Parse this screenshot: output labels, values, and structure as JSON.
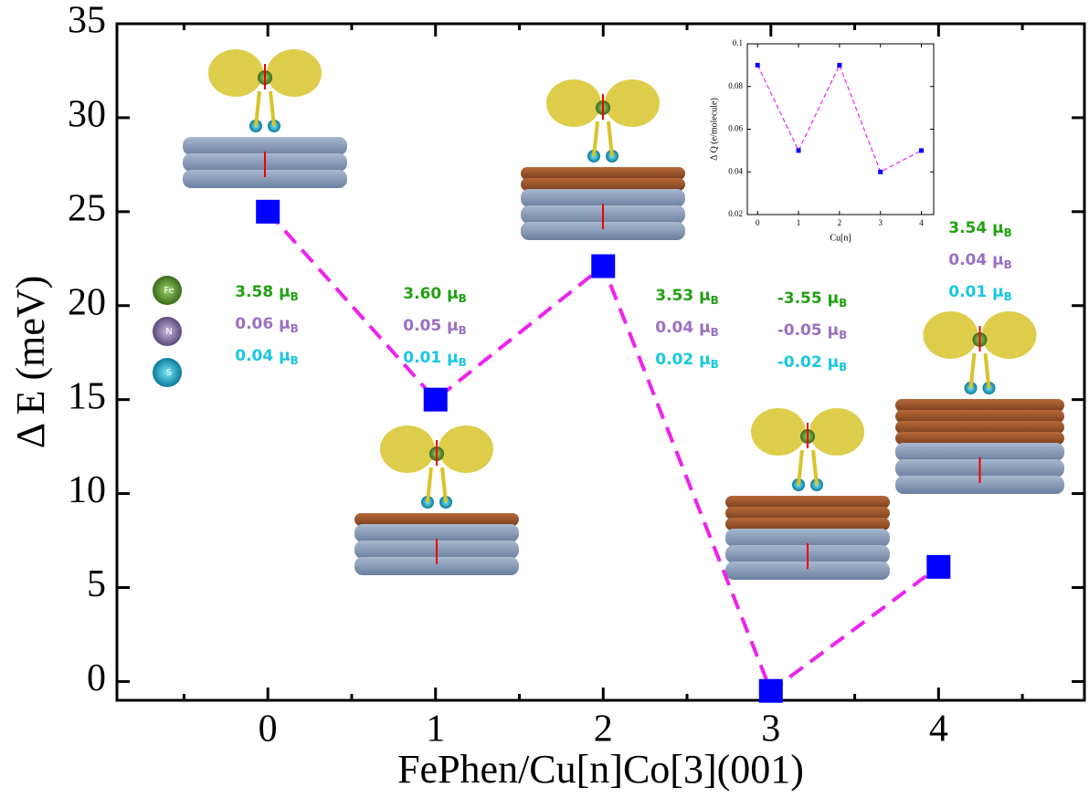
{
  "chart_data": [
    {
      "type": "line",
      "x_label": "FePhen/Cu[n]Co[3](001)",
      "y_label": "Δ E (meV)",
      "x": [
        0,
        1,
        2,
        3,
        4
      ],
      "series": [
        {
          "color": "#0000ff",
          "line_color": "#ee22ee",
          "values": [
            25,
            15,
            22.1,
            -0.5,
            6.1
          ]
        }
      ],
      "xlim": [
        -0.9,
        4.87
      ],
      "ylim": [
        -1,
        35
      ],
      "xticks": [
        0,
        1,
        2,
        3,
        4
      ],
      "yticks": [
        0,
        5,
        10,
        15,
        20,
        25,
        30,
        35
      ],
      "legend": [
        "Fe",
        "N",
        "S"
      ],
      "moment_colors": [
        "#22a012",
        "#9b6fc4",
        "#18c8e0"
      ],
      "annotations": [
        [
          {
            "text": "3.58 μ",
            "sub": "B"
          },
          {
            "text": "0.06 μ",
            "sub": "B"
          },
          {
            "text": "0.04 μ",
            "sub": "B"
          }
        ],
        [
          {
            "text": "3.60 μ",
            "sub": "B"
          },
          {
            "text": "0.05 μ",
            "sub": "B"
          },
          {
            "text": "0.01 μ",
            "sub": "B"
          }
        ],
        [
          {
            "text": "3.53 μ",
            "sub": "B"
          },
          {
            "text": "0.04 μ",
            "sub": "B"
          },
          {
            "text": "0.02 μ",
            "sub": "B"
          }
        ],
        [
          {
            "text": "-3.55 μ",
            "sub": "B"
          },
          {
            "text": "-0.05 μ",
            "sub": "B"
          },
          {
            "text": "-0.02 μ",
            "sub": "B"
          }
        ],
        [
          {
            "text": "3.54 μ",
            "sub": "B"
          },
          {
            "text": "0.04 μ",
            "sub": "B"
          },
          {
            "text": "0.01 μ",
            "sub": "B"
          }
        ]
      ]
    },
    {
      "type": "line",
      "x_label": "Cu[n]",
      "y_label": "Δ Q (e/molecule)",
      "x": [
        0,
        1,
        2,
        3,
        4
      ],
      "series": [
        {
          "color": "#0000ff",
          "line_color": "#ee22ee",
          "values": [
            0.09,
            0.05,
            0.09,
            0.04,
            0.05
          ]
        }
      ],
      "xlim": [
        -0.25,
        4.3
      ],
      "ylim": [
        0.02,
        0.1
      ],
      "xticks": [
        0,
        1,
        2,
        3,
        4
      ],
      "yticks": [
        0.02,
        0.04,
        0.06,
        0.08,
        0.1
      ]
    }
  ]
}
